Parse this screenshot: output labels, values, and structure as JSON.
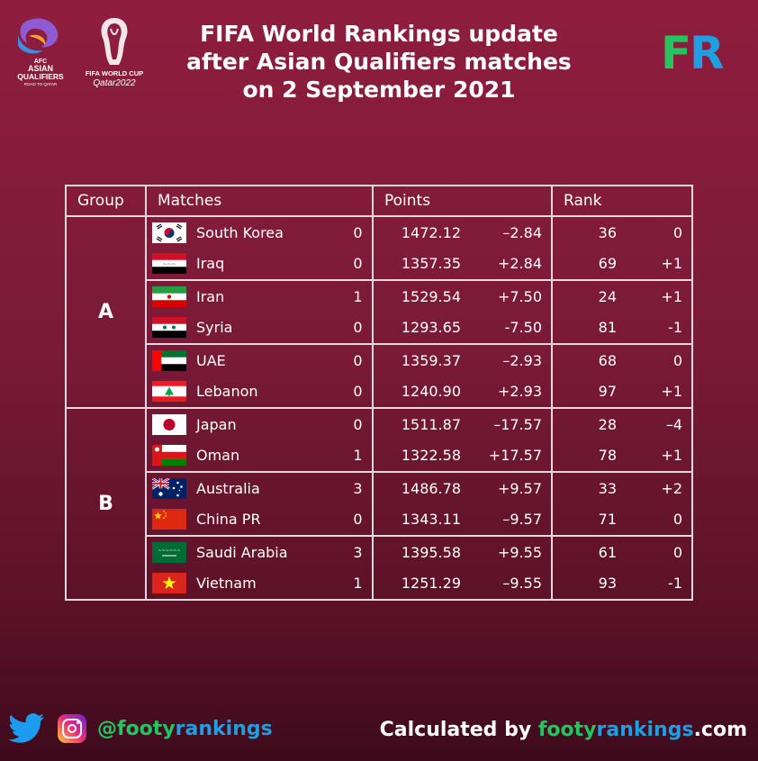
{
  "logos": {
    "afc_line1": "AFC",
    "afc_line2": "ASIAN",
    "afc_line3": "QUALIFIERS",
    "afc_line4": "ROAD TO QATAR",
    "wc_line1": "FIFA WORLD CUP",
    "wc_line2": "Qatar2022",
    "fr_f": "F",
    "fr_r": "R"
  },
  "title": {
    "line1": "FIFA World Rankings update",
    "line2": "after Asian Qualifiers matches",
    "line3": "on 2 September 2021"
  },
  "table": {
    "headers": {
      "group": "Group",
      "matches": "Matches",
      "points": "Points",
      "rank": "Rank"
    },
    "groups": [
      {
        "name": "A",
        "rows": [
          {
            "flag": "south-korea",
            "team": "South Korea",
            "score": "0",
            "points": "1472.12",
            "points_change": "–2.84",
            "rank": "36",
            "rank_change": "0"
          },
          {
            "flag": "iraq",
            "team": "Iraq",
            "score": "0",
            "points": "1357.35",
            "points_change": "+2.84",
            "rank": "69",
            "rank_change": "+1"
          },
          {
            "flag": "iran",
            "team": "Iran",
            "score": "1",
            "points": "1529.54",
            "points_change": "+7.50",
            "rank": "24",
            "rank_change": "+1"
          },
          {
            "flag": "syria",
            "team": "Syria",
            "score": "0",
            "points": "1293.65",
            "points_change": "-7.50",
            "rank": "81",
            "rank_change": "-1"
          },
          {
            "flag": "uae",
            "team": "UAE",
            "score": "0",
            "points": "1359.37",
            "points_change": "–2.93",
            "rank": "68",
            "rank_change": "0"
          },
          {
            "flag": "lebanon",
            "team": "Lebanon",
            "score": "0",
            "points": "1240.90",
            "points_change": "+2.93",
            "rank": "97",
            "rank_change": "+1"
          }
        ]
      },
      {
        "name": "B",
        "rows": [
          {
            "flag": "japan",
            "team": "Japan",
            "score": "0",
            "points": "1511.87",
            "points_change": "–17.57",
            "rank": "28",
            "rank_change": "–4"
          },
          {
            "flag": "oman",
            "team": "Oman",
            "score": "1",
            "points": "1322.58",
            "points_change": "+17.57",
            "rank": "78",
            "rank_change": "+1"
          },
          {
            "flag": "australia",
            "team": "Australia",
            "score": "3",
            "points": "1486.78",
            "points_change": "+9.57",
            "rank": "33",
            "rank_change": "+2"
          },
          {
            "flag": "china",
            "team": "China PR",
            "score": "0",
            "points": "1343.11",
            "points_change": "–9.57",
            "rank": "71",
            "rank_change": "0"
          },
          {
            "flag": "saudi-arabia",
            "team": "Saudi Arabia",
            "score": "3",
            "points": "1395.58",
            "points_change": "+9.55",
            "rank": "61",
            "rank_change": "0"
          },
          {
            "flag": "vietnam",
            "team": "Vietnam",
            "score": "1",
            "points": "1251.29",
            "points_change": "–9.55",
            "rank": "93",
            "rank_change": "-1"
          }
        ]
      }
    ]
  },
  "footer": {
    "handle_at": "@",
    "handle_a": "footy",
    "handle_b": "rankings",
    "calc_prefix": "Calculated by ",
    "site_a": "footy",
    "site_b": "rankings",
    "site_c": ".com"
  },
  "colors": {
    "background_top": "#8f1d3e",
    "background_bottom": "#3e0a1c",
    "accent_green": "#22c55e",
    "accent_blue": "#1ea0e0",
    "grid_lines": "#e9d8de"
  }
}
